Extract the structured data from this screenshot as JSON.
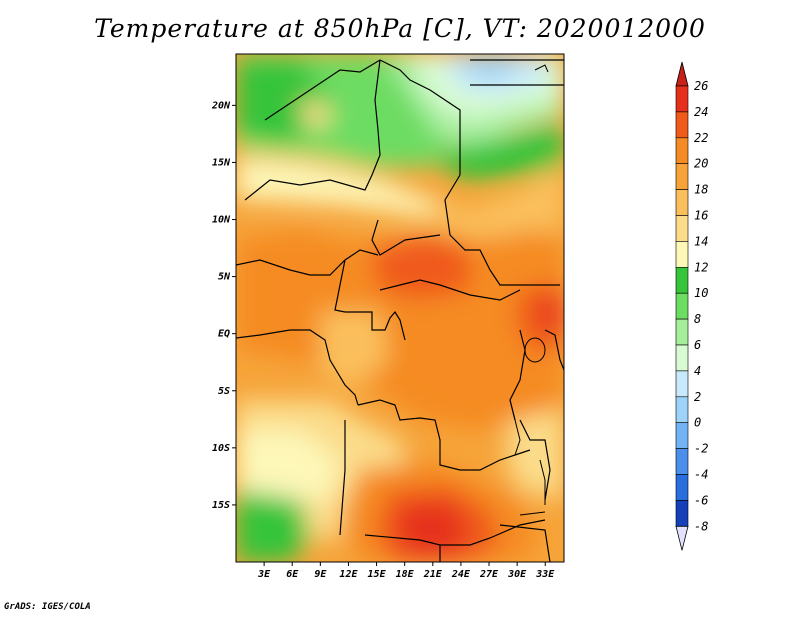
{
  "title": "Temperature at 850hPa [C], VT: 2020012000",
  "credit": "GrADS: IGES/COLA",
  "map": {
    "lat_labels": [
      "20N",
      "15N",
      "10N",
      "5N",
      "EQ",
      "5S",
      "10S",
      "15S"
    ],
    "lat_values": [
      20,
      15,
      10,
      5,
      0,
      -5,
      -10,
      -15
    ],
    "lon_labels": [
      "3E",
      "6E",
      "9E",
      "12E",
      "15E",
      "18E",
      "21E",
      "24E",
      "27E",
      "30E",
      "33E"
    ],
    "lon_values": [
      3,
      6,
      9,
      12,
      15,
      18,
      21,
      24,
      27,
      30,
      33
    ],
    "lon_range": [
      0,
      35
    ],
    "lat_range": [
      -20,
      24.5
    ]
  },
  "colorbar": {
    "labels": [
      "26",
      "24",
      "22",
      "20",
      "18",
      "16",
      "14",
      "12",
      "10",
      "8",
      "6",
      "4",
      "2",
      "0",
      "-2",
      "-4",
      "-6",
      "-8"
    ],
    "colors": [
      "#e6301c",
      "#f05a1a",
      "#f58b24",
      "#f6a43a",
      "#fabf5c",
      "#fbdc8a",
      "#fdf7b8",
      "#36c43a",
      "#6ddc62",
      "#a6ee9c",
      "#d8fbd3",
      "#c8e9fb",
      "#9ed2f8",
      "#72b3f4",
      "#4a90eb",
      "#2a6ddd",
      "#1540b8",
      "#0b1a7a"
    ],
    "top_cap_color": "#c8201a",
    "bottom_cap_color": "#e2e2ff"
  }
}
